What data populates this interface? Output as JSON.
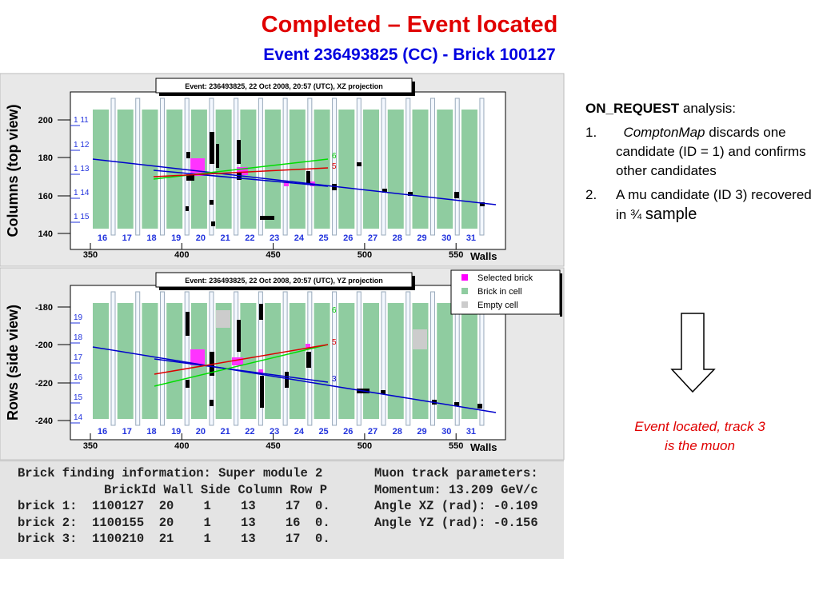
{
  "header": {
    "title": "Completed – Event located",
    "subtitle": "Event 236493825 (CC) - Brick 100127"
  },
  "plots": [
    {
      "frame_title": "Event: 236493825, 22 Oct 2008, 20:57 (UTC), XZ projection",
      "y_label": "Columns (top view)",
      "y_ticks": [
        "200",
        "180",
        "160",
        "140"
      ],
      "x_ticks": [
        "350",
        "400",
        "450",
        "500",
        "550"
      ],
      "x_label": "Walls",
      "walls": [
        "16",
        "17",
        "18",
        "19",
        "20",
        "21",
        "22",
        "23",
        "24",
        "25",
        "26",
        "27",
        "28",
        "29",
        "30",
        "31"
      ],
      "row_labels": [
        "1 11",
        "1 12",
        "1 13",
        "1 14",
        "1 15"
      ],
      "track_labels": [
        "6",
        "5"
      ]
    },
    {
      "frame_title": "Event: 236493825, 22 Oct 2008, 20:57 (UTC), YZ projection",
      "y_label": "Rows (side view)",
      "y_ticks": [
        "-180",
        "-200",
        "-220",
        "-240"
      ],
      "x_ticks": [
        "350",
        "400",
        "450",
        "500",
        "550"
      ],
      "x_label": "Walls",
      "walls": [
        "16",
        "17",
        "18",
        "19",
        "20",
        "21",
        "22",
        "23",
        "24",
        "25",
        "26",
        "27",
        "28",
        "29",
        "30",
        "31"
      ],
      "row_labels": [
        "19",
        "18",
        "17",
        "16",
        "15",
        "14"
      ],
      "track_labels": [
        "6",
        "5",
        "3"
      ]
    }
  ],
  "legend": [
    "Selected brick",
    "Brick in cell",
    "Empty cell"
  ],
  "notes": {
    "heading_bold": "ON_REQUEST",
    "heading_rest": "analysis:",
    "items": [
      {
        "number": "1.",
        "emphasis": "ComptonMap",
        "text": "discards one candidate (ID = 1) and confirms other candidates"
      },
      {
        "number": "2.",
        "text": "A mu candidate (ID 3) recovered in ¾",
        "tail": "sample"
      }
    ]
  },
  "conclusion": [
    "Event located, track 3",
    "is the muon"
  ],
  "table": {
    "left": [
      "Brick finding information: Super module 2",
      "BrickId Wall Side Column Row P",
      "brick 1:  1100127  20    1    13    17  0.",
      "brick 2:  1100155  20    1    13    16  0.",
      "brick 3:  1100210  21    1    13    17  0."
    ],
    "right": [
      "Muon track parameters:",
      "Momentum: 13.209 GeV/c",
      "Angle XZ (rad): -0.109",
      "Angle YZ (rad): -0.156"
    ]
  }
}
